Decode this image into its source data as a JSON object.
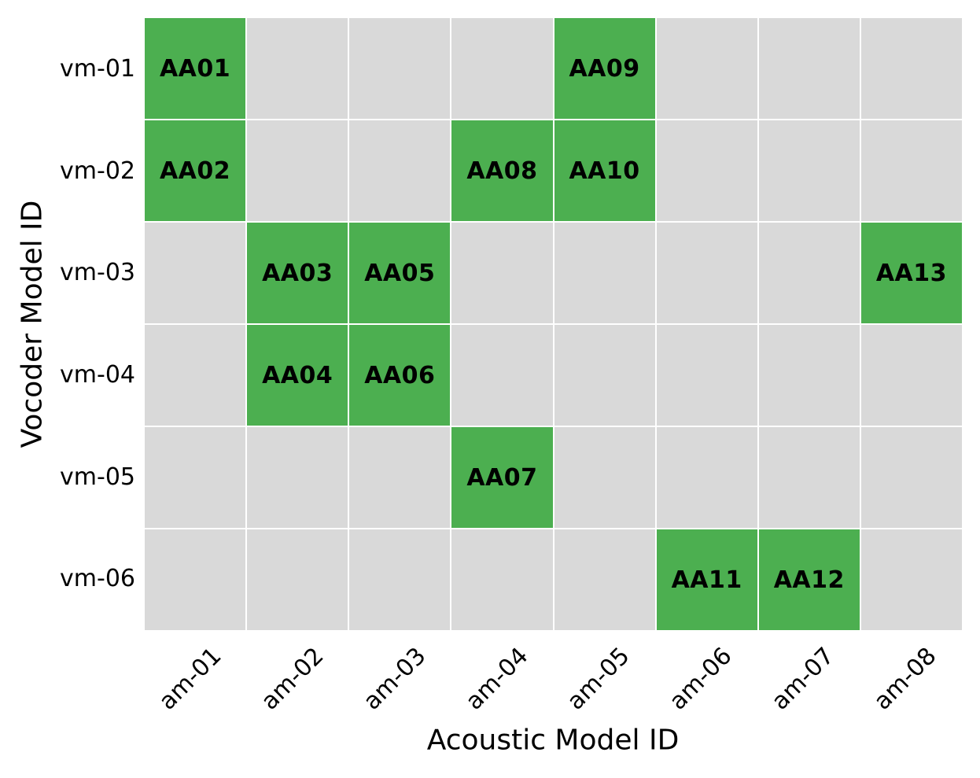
{
  "chart_data": {
    "type": "heatmap",
    "title": "",
    "xlabel": "Acoustic Model ID",
    "ylabel": "Vocoder Model ID",
    "x_categories": [
      "am-01",
      "am-02",
      "am-03",
      "am-04",
      "am-05",
      "am-06",
      "am-07",
      "am-08"
    ],
    "y_categories": [
      "vm-01",
      "vm-02",
      "vm-03",
      "vm-04",
      "vm-05",
      "vm-06"
    ],
    "cells": [
      {
        "y": "vm-01",
        "x": "am-01",
        "label": "AA01"
      },
      {
        "y": "vm-01",
        "x": "am-05",
        "label": "AA09"
      },
      {
        "y": "vm-02",
        "x": "am-01",
        "label": "AA02"
      },
      {
        "y": "vm-02",
        "x": "am-04",
        "label": "AA08"
      },
      {
        "y": "vm-02",
        "x": "am-05",
        "label": "AA10"
      },
      {
        "y": "vm-03",
        "x": "am-02",
        "label": "AA03"
      },
      {
        "y": "vm-03",
        "x": "am-03",
        "label": "AA05"
      },
      {
        "y": "vm-03",
        "x": "am-08",
        "label": "AA13"
      },
      {
        "y": "vm-04",
        "x": "am-02",
        "label": "AA04"
      },
      {
        "y": "vm-04",
        "x": "am-03",
        "label": "AA06"
      },
      {
        "y": "vm-05",
        "x": "am-04",
        "label": "AA07"
      },
      {
        "y": "vm-06",
        "x": "am-06",
        "label": "AA11"
      },
      {
        "y": "vm-06",
        "x": "am-07",
        "label": "AA12"
      }
    ],
    "colors": {
      "filled": "#4caf50",
      "empty": "#d9d9d9",
      "gridline": "#ffffff",
      "text": "#000000"
    },
    "legend": "none",
    "grid": true,
    "x_tick_rotation_deg": 45
  }
}
